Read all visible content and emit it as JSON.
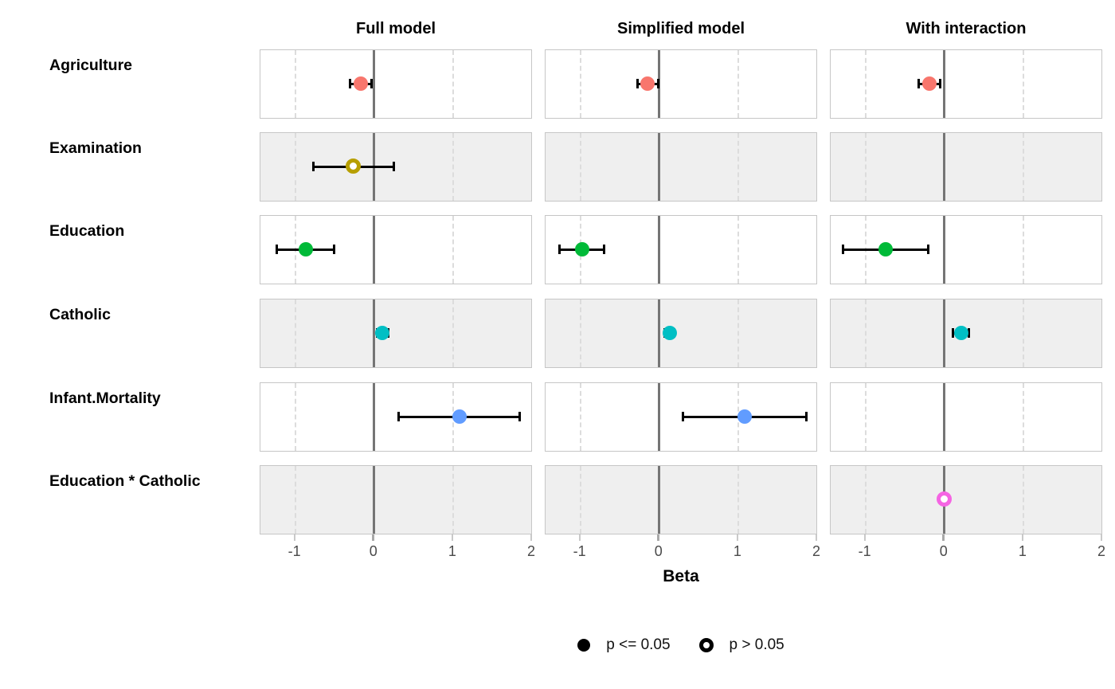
{
  "chart_data": {
    "type": "scatter",
    "subtype": "coefficient-forest-plot",
    "xlabel": "Beta",
    "xlim": [
      -1.44,
      2.01
    ],
    "x_ticks": [
      "-1",
      "0",
      "1",
      "2"
    ],
    "x_tick_values": [
      -1,
      0,
      1,
      2
    ],
    "zero_line_at": 0,
    "dashed_gridlines_at": [
      -1,
      1
    ],
    "grid": "dashed-verticals-only",
    "legend_position": "bottom-center",
    "terms": [
      {
        "label": "Agriculture",
        "color": "#F8766D"
      },
      {
        "label": "Examination",
        "color": "#B79F00"
      },
      {
        "label": "Education",
        "color": "#00BA38"
      },
      {
        "label": "Catholic",
        "color": "#00BFC4"
      },
      {
        "label": "Infant.Mortality",
        "color": "#619CFF"
      },
      {
        "label": "Education * Catholic",
        "color": "#F564E3"
      }
    ],
    "panels": [
      {
        "title": "Full model",
        "estimates": [
          {
            "term": "Agriculture",
            "estimate": -0.17,
            "ci_low": -0.31,
            "ci_high": -0.03,
            "significant": true
          },
          {
            "term": "Examination",
            "estimate": -0.26,
            "ci_low": -0.77,
            "ci_high": 0.25,
            "significant": false
          },
          {
            "term": "Education",
            "estimate": -0.87,
            "ci_low": -1.24,
            "ci_high": -0.5,
            "significant": true
          },
          {
            "term": "Catholic",
            "estimate": 0.1,
            "ci_low": 0.03,
            "ci_high": 0.18,
            "significant": true
          },
          {
            "term": "Infant.Mortality",
            "estimate": 1.08,
            "ci_low": 0.31,
            "ci_high": 1.85,
            "significant": true
          }
        ]
      },
      {
        "title": "Simplified model",
        "estimates": [
          {
            "term": "Agriculture",
            "estimate": -0.15,
            "ci_low": -0.28,
            "ci_high": -0.01,
            "significant": true
          },
          {
            "term": "Education",
            "estimate": -0.98,
            "ci_low": -1.27,
            "ci_high": -0.69,
            "significant": true
          },
          {
            "term": "Catholic",
            "estimate": 0.13,
            "ci_low": 0.06,
            "ci_high": 0.19,
            "significant": true
          },
          {
            "term": "Infant.Mortality",
            "estimate": 1.08,
            "ci_low": 0.3,
            "ci_high": 1.87,
            "significant": true
          }
        ]
      },
      {
        "title": "With interaction",
        "estimates": [
          {
            "term": "Agriculture",
            "estimate": -0.19,
            "ci_low": -0.33,
            "ci_high": -0.05,
            "significant": true
          },
          {
            "term": "Education",
            "estimate": -0.74,
            "ci_low": -1.29,
            "ci_high": -0.2,
            "significant": true
          },
          {
            "term": "Catholic",
            "estimate": 0.21,
            "ci_low": 0.1,
            "ci_high": 0.32,
            "significant": true
          },
          {
            "term": "Education * Catholic",
            "estimate": 0.0,
            "ci_low": -0.01,
            "ci_high": 0.01,
            "significant": false
          }
        ]
      }
    ],
    "legend": [
      {
        "marker": "filled-circle",
        "label": "p <= 0.05"
      },
      {
        "marker": "open-circle",
        "label": "p > 0.05"
      }
    ]
  },
  "style": {
    "stripe_row_colors": [
      "#FFFFFF",
      "#EFEFEF"
    ],
    "panel_border_color": "#C6C6C6",
    "zero_line_color": "#757575",
    "dashed_gridline_color": "#DCDCDC",
    "errorbar_color": "#000000",
    "tick_label_color": "#4A4A4A",
    "text_color": "#000000"
  }
}
